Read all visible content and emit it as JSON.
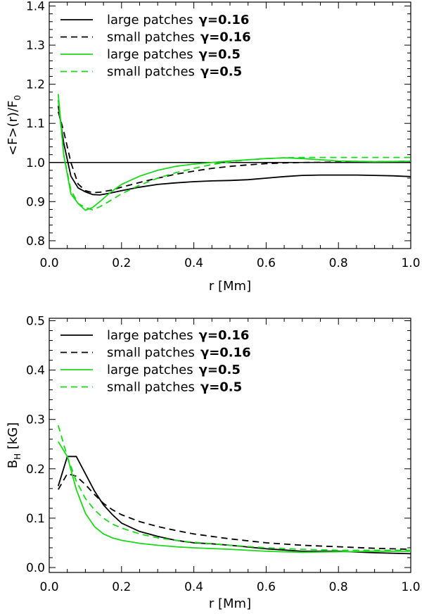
{
  "chart_data": [
    {
      "type": "line",
      "xlabel": "r [Mm]",
      "ylabel": "<F>(r)/F",
      "ylabel_sub": "0",
      "xlim": [
        0.0,
        1.0
      ],
      "ylim": [
        0.78,
        1.41
      ],
      "xticks": [
        0.0,
        0.2,
        0.4,
        0.6,
        0.8,
        1.0
      ],
      "xtick_labels": [
        "0.0",
        "0.2",
        "0.4",
        "0.6",
        "0.8",
        "1.0"
      ],
      "yticks": [
        0.8,
        0.9,
        1.0,
        1.1,
        1.2,
        1.3,
        1.4
      ],
      "ytick_labels": [
        "0.8",
        "0.9",
        "1.0",
        "1.1",
        "1.2",
        "1.3",
        "1.4"
      ],
      "legend_position": "top-left",
      "reference_line": {
        "y": 1.0,
        "color": "#000000"
      },
      "series": [
        {
          "name": "large patches",
          "gamma": "γ=0.16",
          "color": "#000000",
          "dash": "solid",
          "x": [
            0.025,
            0.04,
            0.06,
            0.08,
            0.1,
            0.12,
            0.14,
            0.17,
            0.2,
            0.25,
            0.3,
            0.35,
            0.4,
            0.45,
            0.5,
            0.55,
            0.6,
            0.65,
            0.7,
            0.75,
            0.8,
            0.85,
            0.9,
            0.95,
            1.0
          ],
          "y": [
            1.145,
            1.05,
            0.965,
            0.935,
            0.925,
            0.918,
            0.917,
            0.922,
            0.928,
            0.937,
            0.944,
            0.948,
            0.951,
            0.953,
            0.954,
            0.956,
            0.96,
            0.964,
            0.967,
            0.968,
            0.968,
            0.968,
            0.967,
            0.966,
            0.964
          ]
        },
        {
          "name": "small patches",
          "gamma": "γ=0.16",
          "color": "#000000",
          "dash": "dashed",
          "x": [
            0.025,
            0.04,
            0.06,
            0.08,
            0.1,
            0.12,
            0.14,
            0.17,
            0.2,
            0.25,
            0.3,
            0.35,
            0.4,
            0.45,
            0.5,
            0.55,
            0.6,
            0.65,
            0.7,
            0.8,
            0.9,
            1.0
          ],
          "y": [
            1.13,
            1.08,
            1.0,
            0.945,
            0.928,
            0.923,
            0.924,
            0.929,
            0.937,
            0.949,
            0.96,
            0.97,
            0.978,
            0.985,
            0.99,
            0.994,
            0.997,
            0.999,
            1.0,
            1.001,
            1.002,
            1.003
          ]
        },
        {
          "name": "large patches",
          "gamma": "γ=0.5",
          "color": "#19d919",
          "dash": "solid",
          "x": [
            0.025,
            0.04,
            0.06,
            0.08,
            0.1,
            0.12,
            0.14,
            0.17,
            0.2,
            0.25,
            0.3,
            0.35,
            0.4,
            0.45,
            0.5,
            0.55,
            0.6,
            0.65,
            0.7,
            0.75,
            0.8,
            0.9,
            1.0
          ],
          "y": [
            1.175,
            1.02,
            0.92,
            0.895,
            0.878,
            0.885,
            0.9,
            0.924,
            0.944,
            0.965,
            0.98,
            0.99,
            0.996,
            1.0,
            1.004,
            1.007,
            1.01,
            1.012,
            1.01,
            1.007,
            1.004,
            1.002,
            1.003
          ]
        },
        {
          "name": "small patches",
          "gamma": "γ=0.5",
          "color": "#19d919",
          "dash": "dashed",
          "x": [
            0.025,
            0.04,
            0.06,
            0.08,
            0.1,
            0.12,
            0.14,
            0.17,
            0.2,
            0.25,
            0.3,
            0.35,
            0.4,
            0.45,
            0.5,
            0.55,
            0.6,
            0.65,
            0.7,
            0.8,
            0.9,
            1.0
          ],
          "y": [
            1.16,
            1.02,
            0.93,
            0.895,
            0.885,
            0.879,
            0.887,
            0.903,
            0.92,
            0.942,
            0.96,
            0.974,
            0.985,
            0.995,
            1.002,
            1.007,
            1.01,
            1.012,
            1.013,
            1.013,
            1.013,
            1.013
          ]
        }
      ]
    },
    {
      "type": "line",
      "xlabel": "r [Mm]",
      "ylabel": "B",
      "ylabel_sub": "H",
      "ylabel_suffix": " [kG]",
      "xlim": [
        0.0,
        1.0
      ],
      "ylim": [
        -0.01,
        0.505
      ],
      "xticks": [
        0.0,
        0.2,
        0.4,
        0.6,
        0.8,
        1.0
      ],
      "xtick_labels": [
        "0.0",
        "0.2",
        "0.4",
        "0.6",
        "0.8",
        "1.0"
      ],
      "yticks": [
        0.0,
        0.1,
        0.2,
        0.3,
        0.4,
        0.5
      ],
      "ytick_labels": [
        "0.0",
        "0.1",
        "0.2",
        "0.3",
        "0.4",
        "0.5"
      ],
      "legend_position": "top-left",
      "series": [
        {
          "name": "large patches",
          "gamma": "γ=0.16",
          "color": "#000000",
          "dash": "solid",
          "x": [
            0.025,
            0.05,
            0.075,
            0.1,
            0.125,
            0.15,
            0.175,
            0.2,
            0.25,
            0.3,
            0.35,
            0.4,
            0.45,
            0.5,
            0.6,
            0.7,
            0.8,
            0.9,
            1.0
          ],
          "y": [
            0.165,
            0.225,
            0.225,
            0.19,
            0.155,
            0.127,
            0.107,
            0.09,
            0.073,
            0.063,
            0.055,
            0.05,
            0.048,
            0.045,
            0.038,
            0.033,
            0.033,
            0.03,
            0.028
          ]
        },
        {
          "name": "small patches",
          "gamma": "γ=0.16",
          "color": "#000000",
          "dash": "dashed",
          "x": [
            0.025,
            0.05,
            0.075,
            0.1,
            0.125,
            0.15,
            0.175,
            0.2,
            0.25,
            0.3,
            0.35,
            0.4,
            0.45,
            0.5,
            0.6,
            0.7,
            0.8,
            0.9,
            1.0
          ],
          "y": [
            0.158,
            0.19,
            0.185,
            0.168,
            0.148,
            0.13,
            0.117,
            0.107,
            0.093,
            0.083,
            0.075,
            0.068,
            0.063,
            0.058,
            0.05,
            0.045,
            0.042,
            0.039,
            0.037
          ]
        },
        {
          "name": "large patches",
          "gamma": "γ=0.5",
          "color": "#19d919",
          "dash": "solid",
          "x": [
            0.025,
            0.05,
            0.075,
            0.1,
            0.125,
            0.15,
            0.175,
            0.2,
            0.25,
            0.3,
            0.35,
            0.4,
            0.5,
            0.6,
            0.7,
            0.8,
            0.9,
            1.0
          ],
          "y": [
            0.255,
            0.225,
            0.158,
            0.11,
            0.083,
            0.068,
            0.06,
            0.055,
            0.049,
            0.045,
            0.042,
            0.04,
            0.037,
            0.033,
            0.031,
            0.032,
            0.033,
            0.033
          ]
        },
        {
          "name": "small patches",
          "gamma": "γ=0.5",
          "color": "#19d919",
          "dash": "dashed",
          "x": [
            0.025,
            0.05,
            0.075,
            0.1,
            0.125,
            0.15,
            0.175,
            0.2,
            0.25,
            0.3,
            0.35,
            0.4,
            0.5,
            0.6,
            0.7,
            0.8,
            0.9,
            1.0
          ],
          "y": [
            0.288,
            0.225,
            0.175,
            0.14,
            0.117,
            0.1,
            0.088,
            0.08,
            0.068,
            0.06,
            0.055,
            0.051,
            0.045,
            0.04,
            0.037,
            0.035,
            0.035,
            0.035
          ]
        }
      ]
    }
  ]
}
